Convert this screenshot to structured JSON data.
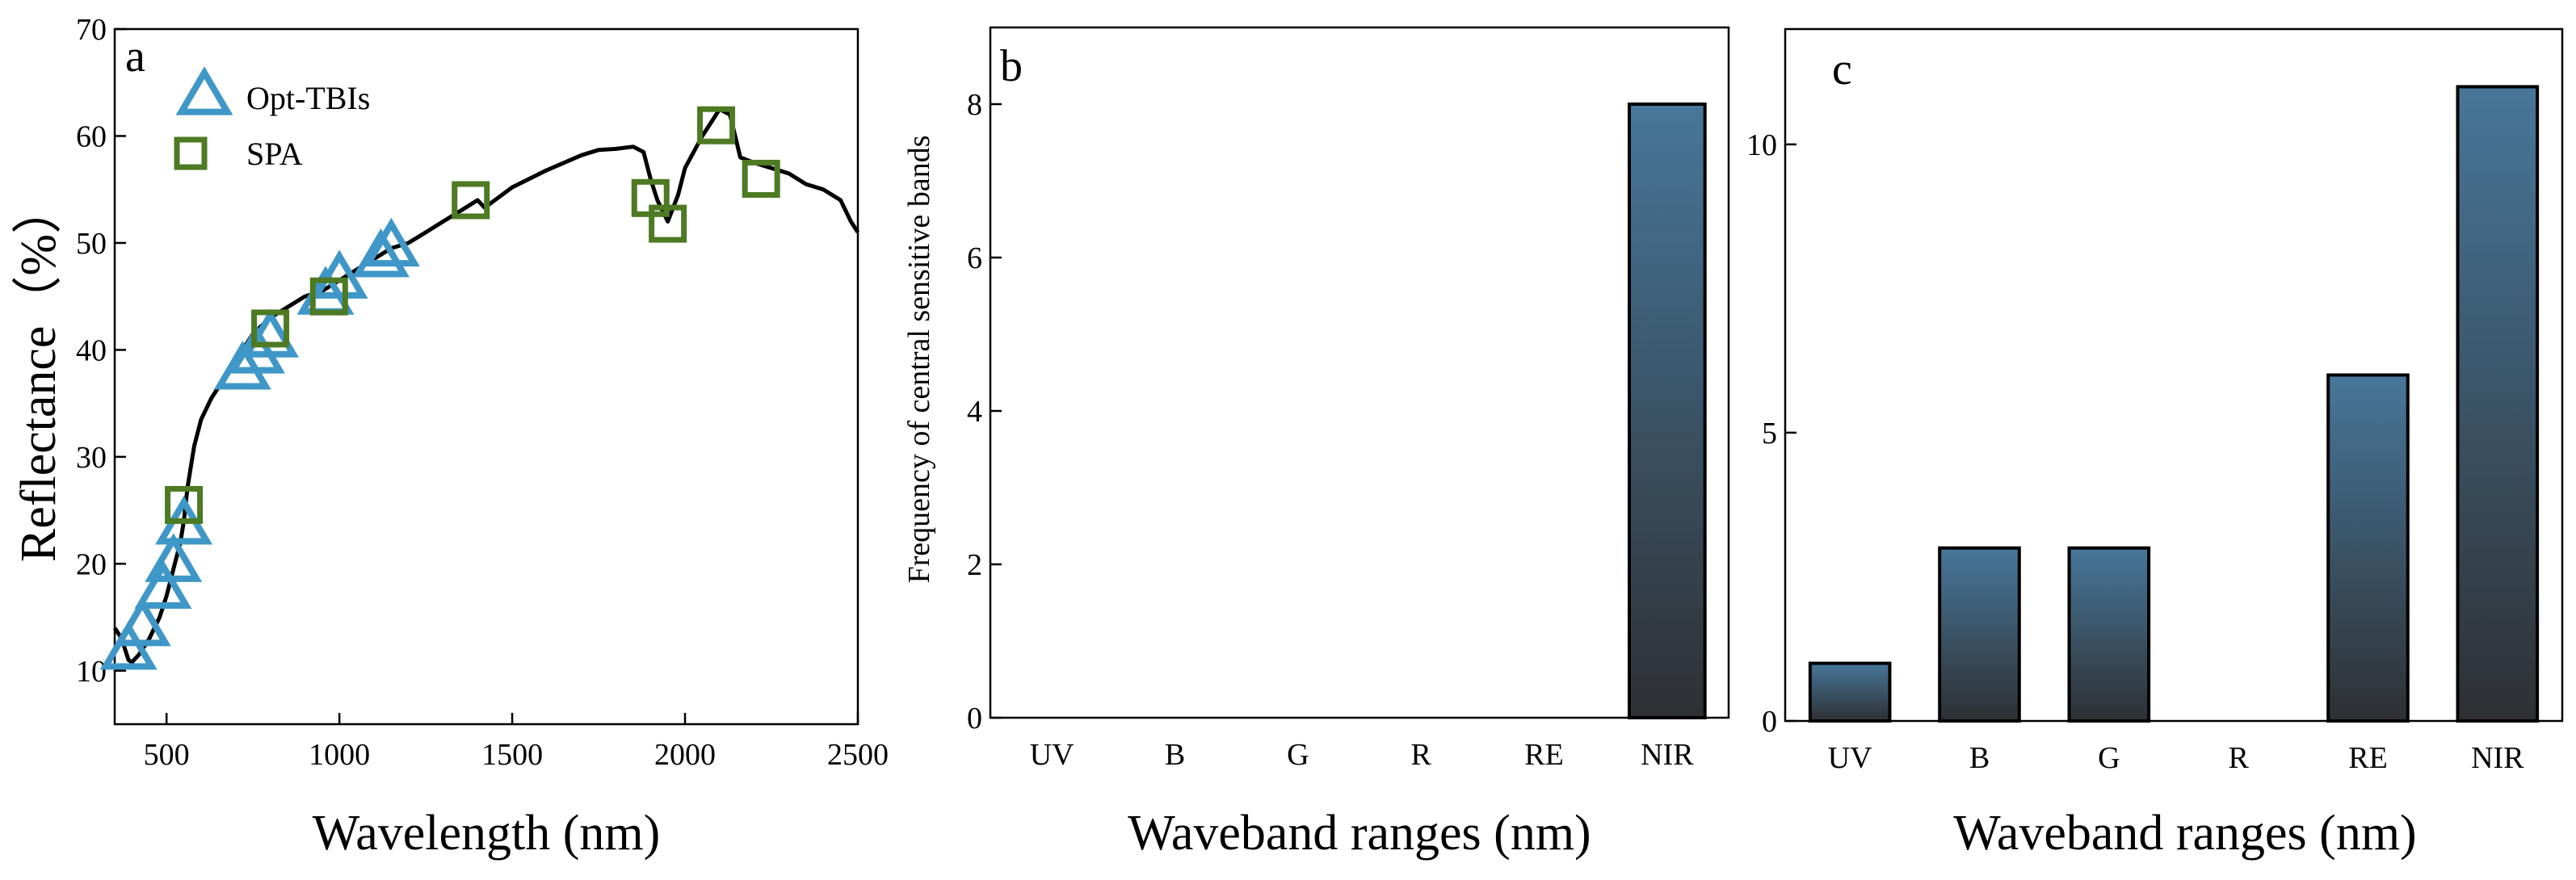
{
  "chart_data": [
    {
      "panel": "a",
      "type": "line",
      "xlabel": "Wavelength (nm)",
      "ylabel": "Reflectance（%）",
      "xlim": [
        350,
        2500
      ],
      "ylim": [
        5,
        70
      ],
      "xticks": [
        500,
        1000,
        1500,
        2000,
        2500
      ],
      "yticks": [
        10,
        20,
        30,
        40,
        50,
        60,
        70
      ],
      "spectrum": {
        "x": [
          350,
          360,
          370,
          380,
          390,
          400,
          420,
          450,
          480,
          500,
          520,
          540,
          550,
          560,
          570,
          580,
          600,
          630,
          660,
          690,
          700,
          720,
          750,
          800,
          850,
          900,
          950,
          1000,
          1050,
          1100,
          1150,
          1200,
          1250,
          1300,
          1350,
          1400,
          1420,
          1450,
          1500,
          1550,
          1600,
          1650,
          1700,
          1750,
          1800,
          1850,
          1880,
          1900,
          1920,
          1950,
          1980,
          2000,
          2050,
          2080,
          2100,
          2130,
          2160,
          2200,
          2250,
          2300,
          2350,
          2400,
          2450,
          2480,
          2500
        ],
        "y": [
          14,
          13.5,
          13,
          12,
          11,
          10.8,
          11.5,
          13,
          15,
          17,
          19.5,
          22,
          24,
          27,
          29,
          31,
          33.5,
          35.5,
          37,
          38.5,
          39,
          40,
          41.5,
          43,
          44,
          45,
          45.5,
          46.5,
          47.5,
          48.5,
          49.5,
          50,
          51,
          52,
          53,
          54,
          53.3,
          54,
          55.2,
          56,
          56.8,
          57.5,
          58.2,
          58.7,
          58.8,
          59,
          58.5,
          56,
          54,
          52,
          54.5,
          57,
          60,
          61.5,
          62.5,
          62,
          58,
          57.5,
          57,
          56.5,
          55.5,
          55,
          54,
          52,
          51
        ]
      },
      "series": [
        {
          "name": "Opt-TBIs",
          "marker": "triangle",
          "color": "#3f97c8",
          "x": [
            390,
            430,
            490,
            520,
            550,
            720,
            760,
            800,
            960,
            1000,
            1120,
            1150
          ],
          "y": [
            11.8,
            14,
            17.5,
            20,
            23.5,
            38,
            39.5,
            41,
            45,
            46.5,
            48.5,
            49.5
          ]
        },
        {
          "name": "SPA",
          "marker": "square",
          "color": "#4d7a23",
          "x": [
            550,
            800,
            970,
            1380,
            1900,
            1950,
            2090,
            2220
          ],
          "y": [
            25.5,
            42,
            45,
            54,
            54.2,
            51.8,
            61,
            56
          ]
        }
      ]
    },
    {
      "panel": "b",
      "type": "bar",
      "xlabel": "Waveband ranges (nm)",
      "ylabel": "Frequency of central sensitive bands",
      "categories": [
        "UV",
        "B",
        "G",
        "R",
        "RE",
        "NIR"
      ],
      "values": [
        0,
        0,
        0,
        0,
        0,
        8
      ],
      "ylim": [
        0,
        9
      ],
      "yticks": [
        0,
        2,
        4,
        6,
        8
      ],
      "colors": {
        "top": "#47779a",
        "bottom": "#2e3033"
      }
    },
    {
      "panel": "c",
      "type": "bar",
      "xlabel": "Waveband ranges (nm)",
      "ylabel": "",
      "categories": [
        "UV",
        "B",
        "G",
        "R",
        "RE",
        "NIR"
      ],
      "values": [
        1,
        3,
        3,
        0,
        6,
        11
      ],
      "ylim": [
        0,
        12
      ],
      "yticks": [
        0,
        5,
        10
      ],
      "colors": {
        "top": "#47779a",
        "bottom": "#2e3033"
      }
    }
  ]
}
